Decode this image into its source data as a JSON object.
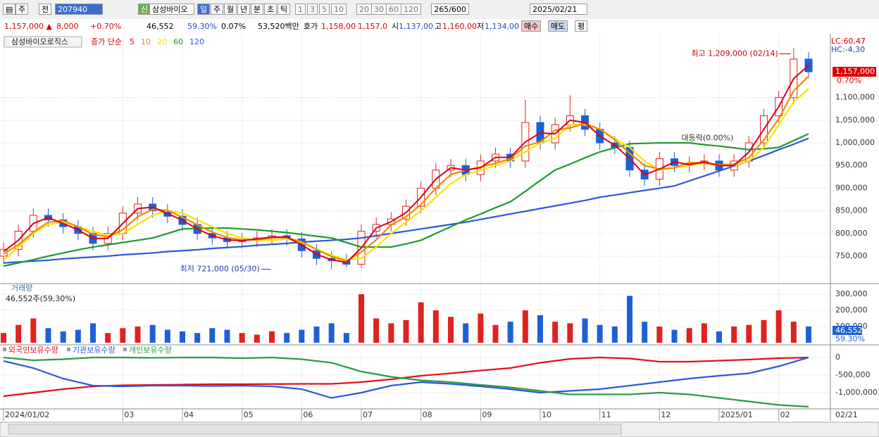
{
  "toolbar": {
    "row1": {
      "type_btn": "주",
      "prev_btn": "전",
      "code": "207940",
      "new_badge": "신",
      "name": "삼성바이오",
      "periods": [
        "일",
        "주",
        "월",
        "년",
        "분",
        "초",
        "틱"
      ],
      "period_nums": [
        "1",
        "3",
        "5",
        "10",
        "20",
        "30",
        "60",
        "120"
      ],
      "count": "265",
      "count_max": "/600",
      "date": "2025/02/21"
    },
    "row2": {
      "price": "1,157,000 ▲",
      "change": "8,000",
      "change_pct": "+0.70%",
      "volume": "46,552",
      "vol_ratio": "59.30%",
      "turnover": "0.07%",
      "amount": "53,520백만",
      "quote_label": "호가",
      "ask": "1,158,00",
      "bid": "1,157,0",
      "open_label": "시",
      "open": "1,137,00",
      "high_label": "고",
      "high": "1,160,00",
      "low_label": "저",
      "low": "1,134,00",
      "buy": "매수",
      "sell": "매도",
      "avg": "평"
    }
  },
  "chart_data": [
    {
      "type": "candlestick",
      "title": "삼성바이오로직스",
      "legend_prefix": "종가 단순",
      "up_color": "#e0221f",
      "down_color": "#1f5fd6",
      "grid": true,
      "open": [
        750000,
        765000,
        805000,
        840000,
        830000,
        815000,
        800000,
        778000,
        800000,
        845000,
        865000,
        850000,
        838000,
        820000,
        800000,
        790000,
        782000,
        785000,
        790000,
        795000,
        788000,
        762000,
        745000,
        740000,
        732000,
        805000,
        820000,
        832000,
        860000,
        900000,
        940000,
        950000,
        930000,
        960000,
        975000,
        960000,
        1045000,
        1000000,
        1040000,
        1060000,
        1030000,
        1000000,
        990000,
        940000,
        920000,
        965000,
        950000,
        955000,
        960000,
        940000,
        960000,
        1000000,
        1060000,
        1100000,
        1185000
      ],
      "high": [
        780000,
        820000,
        855000,
        855000,
        845000,
        830000,
        815000,
        815000,
        860000,
        880000,
        880000,
        865000,
        853000,
        835000,
        815000,
        805000,
        800000,
        805000,
        810000,
        810000,
        803000,
        777000,
        760000,
        755000,
        820000,
        835000,
        847000,
        875000,
        915000,
        955000,
        965000,
        965000,
        975000,
        990000,
        990000,
        1095000,
        1060000,
        1055000,
        1105000,
        1075000,
        1045000,
        1015000,
        1005000,
        955000,
        980000,
        980000,
        970000,
        975000,
        975000,
        975000,
        1015000,
        1075000,
        1115000,
        1209000,
        1200000
      ],
      "low": [
        735000,
        750000,
        790000,
        815000,
        800000,
        785000,
        763000,
        763000,
        785000,
        830000,
        835000,
        823000,
        805000,
        785000,
        775000,
        767000,
        767000,
        770000,
        775000,
        773000,
        747000,
        730000,
        721000,
        725000,
        724000,
        790000,
        805000,
        817000,
        845000,
        885000,
        925000,
        915000,
        915000,
        945000,
        945000,
        945000,
        985000,
        985000,
        1025000,
        1015000,
        985000,
        975000,
        925000,
        905000,
        905000,
        935000,
        935000,
        940000,
        925000,
        925000,
        945000,
        985000,
        1045000,
        1085000,
        1142000
      ],
      "close": [
        765000,
        805000,
        840000,
        830000,
        815000,
        800000,
        778000,
        800000,
        845000,
        865000,
        850000,
        838000,
        820000,
        800000,
        790000,
        782000,
        785000,
        790000,
        795000,
        788000,
        762000,
        745000,
        740000,
        732000,
        805000,
        820000,
        832000,
        860000,
        900000,
        940000,
        950000,
        930000,
        960000,
        975000,
        960000,
        1045000,
        1000000,
        1040000,
        1060000,
        1030000,
        1000000,
        990000,
        940000,
        920000,
        965000,
        950000,
        955000,
        960000,
        940000,
        960000,
        1000000,
        1060000,
        1100000,
        1185000,
        1157000
      ],
      "series": [
        {
          "name": "5",
          "color": "#d9001b",
          "values": [
            760000,
            785000,
            822000,
            835000,
            822000,
            808000,
            789000,
            789000,
            822000,
            855000,
            858000,
            844000,
            829000,
            810000,
            795000,
            786000,
            784000,
            788000,
            792000,
            792000,
            775000,
            754000,
            742000,
            736000,
            768000,
            812000,
            826000,
            846000,
            880000,
            920000,
            945000,
            940000,
            945000,
            968000,
            968000,
            1002000,
            1022000,
            1020000,
            1050000,
            1045000,
            1015000,
            995000,
            965000,
            930000,
            942000,
            958000,
            952000,
            958000,
            950000,
            950000,
            980000,
            1030000,
            1080000,
            1142000,
            1171000
          ]
        },
        {
          "name": "10",
          "color": "#f08c00",
          "values": [
            755000,
            775000,
            803000,
            825000,
            828000,
            815000,
            798000,
            793000,
            808000,
            837000,
            853000,
            851000,
            836000,
            819000,
            803000,
            791000,
            786000,
            786000,
            790000,
            791000,
            782000,
            765000,
            749000,
            739000,
            759000,
            786000,
            819000,
            837000,
            864000,
            900000,
            930000,
            940000,
            947000,
            955000,
            965000,
            993000,
            1002000,
            1028000,
            1033000,
            1043000,
            1030000,
            1007000,
            977000,
            950000,
            942000,
            945000,
            957000,
            955000,
            952000,
            953000,
            967000,
            1007000,
            1053000,
            1115000,
            1147000
          ]
        },
        {
          "name": "20",
          "color": "#f5e400",
          "values": [
            740000,
            770000,
            800000,
            820000,
            825000,
            815000,
            805000,
            795000,
            800000,
            820000,
            840000,
            850000,
            845000,
            830000,
            815000,
            800000,
            790000,
            785000,
            785000,
            788000,
            780000,
            765000,
            752000,
            742000,
            745000,
            770000,
            800000,
            825000,
            850000,
            880000,
            910000,
            930000,
            940000,
            950000,
            960000,
            980000,
            1000000,
            1010000,
            1040000,
            1040000,
            1030000,
            1010000,
            990000,
            960000,
            940000,
            945000,
            950000,
            955000,
            950000,
            950000,
            960000,
            990000,
            1040000,
            1090000,
            1120000
          ]
        },
        {
          "name": "60",
          "color": "#1c9a2c",
          "values": [
            728000,
            735000,
            742000,
            750000,
            757000,
            764000,
            770000,
            775000,
            780000,
            785000,
            790000,
            800000,
            810000,
            811000,
            812000,
            812000,
            810000,
            808000,
            805000,
            802000,
            798000,
            794000,
            790000,
            780000,
            770000,
            770000,
            770000,
            777000,
            785000,
            800000,
            815000,
            830000,
            843000,
            857000,
            870000,
            893000,
            917000,
            940000,
            953000,
            967000,
            980000,
            989000,
            998000,
            999000,
            1000000,
            1000000,
            1000000,
            996000,
            993000,
            989000,
            985000,
            987000,
            990000,
            1005000,
            1020000
          ]
        },
        {
          "name": "120",
          "color": "#2b59d9",
          "values": [
            735000,
            737000,
            739000,
            741000,
            744000,
            746000,
            748000,
            750000,
            753000,
            755000,
            757000,
            760000,
            762000,
            764000,
            767000,
            769000,
            771000,
            774000,
            776000,
            778000,
            781000,
            783000,
            785000,
            787000,
            790000,
            795000,
            800000,
            805000,
            810000,
            815000,
            820000,
            825000,
            831000,
            837000,
            843000,
            849000,
            855000,
            861000,
            867000,
            873000,
            880000,
            885000,
            890000,
            895000,
            900000,
            905000,
            916000,
            927000,
            938000,
            949000,
            960000,
            972000,
            985000,
            997000,
            1010000
          ]
        }
      ],
      "ylim": [
        694000,
        1230000
      ],
      "yticks": [
        {
          "value": 750000,
          "label": "750,000"
        },
        {
          "value": 800000,
          "label": "800,000"
        },
        {
          "value": 850000,
          "label": "850,000"
        },
        {
          "value": 900000,
          "label": "900,000"
        },
        {
          "value": 950000,
          "label": "950,000"
        },
        {
          "value": 1000000,
          "label": "1,000,000"
        },
        {
          "value": 1050000,
          "label": "1,050,000"
        },
        {
          "value": 1100000,
          "label": "1,100,000"
        }
      ],
      "xticks": [
        {
          "value": 0,
          "label": "2024/01/02"
        },
        {
          "value": 8,
          "label": "03"
        },
        {
          "value": 12,
          "label": "04"
        },
        {
          "value": 16,
          "label": "05"
        },
        {
          "value": 20,
          "label": "06"
        },
        {
          "value": 24,
          "label": "07"
        },
        {
          "value": 28,
          "label": "08"
        },
        {
          "value": 32,
          "label": "09"
        },
        {
          "value": 36,
          "label": "10"
        },
        {
          "value": 40,
          "label": "11"
        },
        {
          "value": 44,
          "label": "12"
        },
        {
          "value": 48,
          "label": "2025/01"
        },
        {
          "value": 52,
          "label": "02"
        }
      ],
      "x_end_label": "02/21",
      "annotations": {
        "high": "최고 1,209,000 (02/14)",
        "low": "최저 721,000 (05/30)",
        "box": "대등락(0.00%)"
      },
      "lc": "LC:60,47",
      "hc": "HC:-4,30",
      "price_tag": {
        "value": 1157000,
        "label": "1,157,000"
      },
      "price_change": "0.70%"
    },
    {
      "type": "bar",
      "title": "거래량",
      "subtitle": "46,552주(59,30%)",
      "values": [
        60000,
        110000,
        150000,
        90000,
        70000,
        80000,
        120000,
        60000,
        90000,
        100000,
        110000,
        80000,
        70000,
        60000,
        90000,
        80000,
        60000,
        50000,
        70000,
        60000,
        80000,
        100000,
        120000,
        60000,
        300000,
        150000,
        120000,
        140000,
        250000,
        200000,
        160000,
        120000,
        180000,
        110000,
        130000,
        200000,
        170000,
        130000,
        120000,
        150000,
        110000,
        100000,
        290000,
        130000,
        100000,
        80000,
        90000,
        120000,
        70000,
        100000,
        110000,
        140000,
        200000,
        130000,
        100000
      ],
      "ylim": [
        0,
        357000
      ],
      "yticks": [
        {
          "value": 100000,
          "label": "100,000"
        },
        {
          "value": 200000,
          "label": "200,000"
        },
        {
          "value": 300000,
          "label": "300,000"
        }
      ],
      "last_label": "46,552",
      "last_ratio": "59.30%"
    },
    {
      "type": "line",
      "series": [
        {
          "name": "외국인보유수량",
          "color": "#e0121b",
          "values": [
            -1100000,
            -1000000,
            -900000,
            -820000,
            -790000,
            -780000,
            -770000,
            -760000,
            -760000,
            -755000,
            -750000,
            -750000,
            -700000,
            -620000,
            -520000,
            -450000,
            -370000,
            -300000,
            -150000,
            -40000,
            0,
            -30000,
            -120000,
            -120000,
            -90000,
            -60000,
            -20000,
            0
          ]
        },
        {
          "name": "기관보유수량",
          "color": "#2b59d9",
          "values": [
            -100000,
            -300000,
            -600000,
            -800000,
            -820000,
            -800000,
            -800000,
            -810000,
            -800000,
            -820000,
            -900000,
            -1150000,
            -1000000,
            -800000,
            -700000,
            -750000,
            -820000,
            -900000,
            -1000000,
            -950000,
            -900000,
            -800000,
            -700000,
            -600000,
            -520000,
            -450000,
            -250000,
            0
          ]
        },
        {
          "name": "개인보유수량",
          "color": "#2e9a4a",
          "values": [
            0,
            -80000,
            -50000,
            0,
            0,
            -10000,
            0,
            0,
            -20000,
            0,
            -50000,
            -150000,
            -400000,
            -550000,
            -650000,
            -700000,
            -780000,
            -850000,
            -950000,
            -1050000,
            -1050000,
            -1050000,
            -1000000,
            -1050000,
            -1150000,
            -1250000,
            -1350000,
            -1400000
          ]
        }
      ],
      "ylim": [
        -1440000,
        300000
      ],
      "yticks": [
        0,
        {
          "value": -500000,
          "label": "-500,000"
        },
        {
          "value": -1000000,
          "label": "-1,000,000"
        }
      ]
    }
  ]
}
